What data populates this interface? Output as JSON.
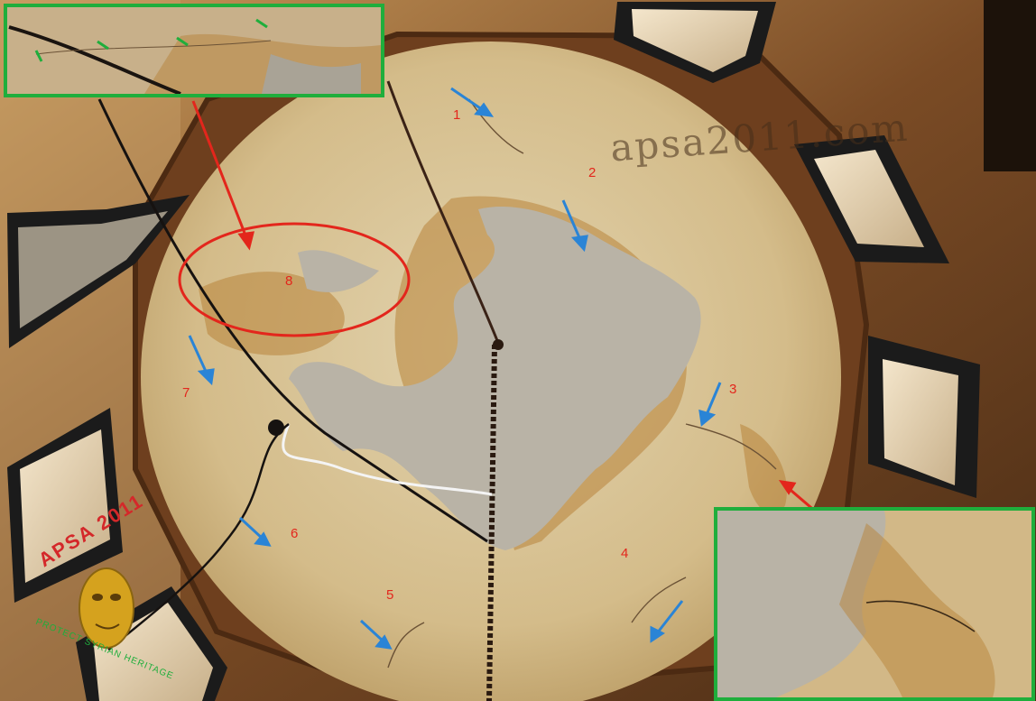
{
  "image": {
    "subject": "dome-interior-damage-photo",
    "colors": {
      "annotation_red": "#e3261c",
      "annotation_blue": "#2a84d6",
      "annotation_green": "#1fae3c",
      "plaster": "#d9c49a",
      "stone": "#8a5a30"
    }
  },
  "watermark": {
    "text": "apsa2011.com"
  },
  "markers": [
    "1",
    "2",
    "3",
    "4",
    "5",
    "6",
    "7",
    "8"
  ],
  "logo": {
    "title": "APSA 2011",
    "subtitle": "PROTECT SYRIAN HERITAGE"
  }
}
